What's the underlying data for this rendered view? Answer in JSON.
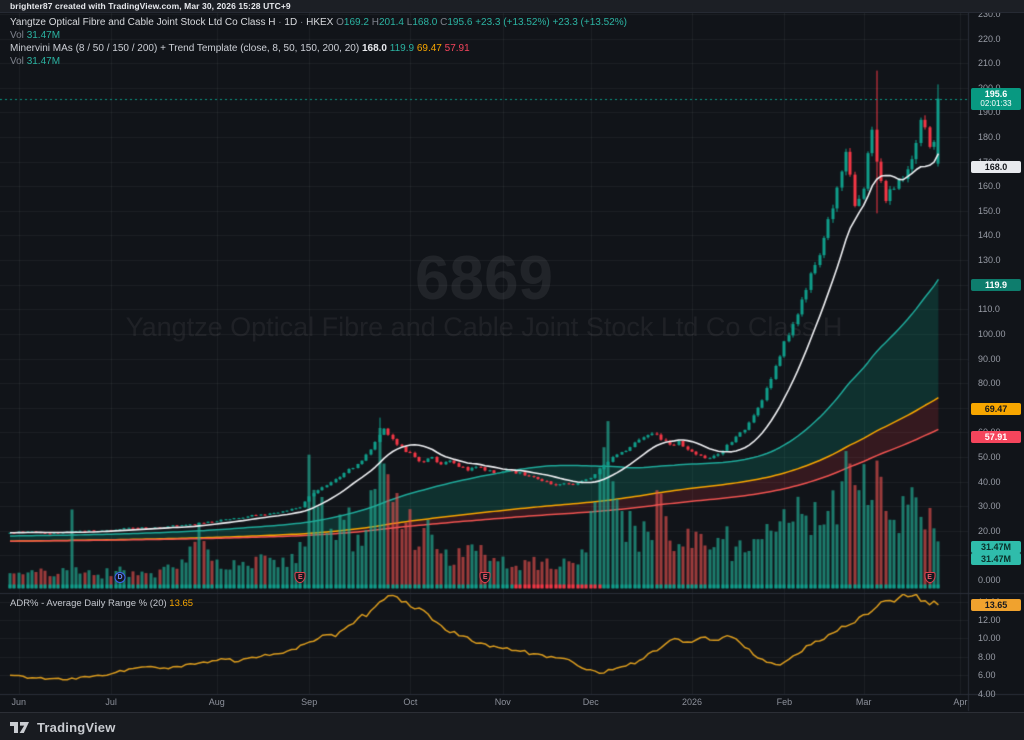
{
  "topbar": {
    "credit": "brighter87 created with TradingView.com, Mar 30, 2026 15:28 UTC+9"
  },
  "legend": {
    "symbol": "Yangtze Optical Fibre and Cable Joint Stock Ltd Co Class H",
    "dot": "·",
    "interval": "1D",
    "exchange": "HKEX",
    "o_label": "O",
    "o": "169.2",
    "h_label": "H",
    "h": "201.4",
    "l_label": "L",
    "l": "168.0",
    "c_label": "C",
    "c": "195.6",
    "change": "+23.3 (+13.52%)",
    "change2": "+23.3 (+13.52%)",
    "vol_label": "Vol",
    "vol_value": "31.47M",
    "indicator_title": "Minervini MAs (8 / 50 / 150 / 200) + Trend Template (close, 8, 50, 150, 200, 20)",
    "ma8": "168.0",
    "ma50": "119.9",
    "ma150": "69.47",
    "ma200": "57.91",
    "vol2_label": "Vol",
    "vol2_value": "31.47M"
  },
  "watermark": {
    "code": "6869",
    "name": "Yangtze Optical Fibre and Cable Joint Stock Ltd Co Class H"
  },
  "price_scale": {
    "labels": [
      {
        "text": "230.0",
        "price": 230
      },
      {
        "text": "220.0",
        "price": 220
      },
      {
        "text": "210.0",
        "price": 210
      },
      {
        "text": "200.0",
        "price": 200
      },
      {
        "text": "190.0",
        "price": 190
      },
      {
        "text": "180.0",
        "price": 180
      },
      {
        "text": "170.0",
        "price": 170
      },
      {
        "text": "160.0",
        "price": 160
      },
      {
        "text": "150.0",
        "price": 150
      },
      {
        "text": "140.0",
        "price": 140
      },
      {
        "text": "130.0",
        "price": 130
      },
      {
        "text": "120.0",
        "price": 120
      },
      {
        "text": "110.0",
        "price": 110
      },
      {
        "text": "100.00",
        "price": 100
      },
      {
        "text": "90.00",
        "price": 90
      },
      {
        "text": "80.00",
        "price": 80
      },
      {
        "text": "70.00",
        "price": 70
      },
      {
        "text": "60.00",
        "price": 60
      },
      {
        "text": "50.00",
        "price": 50
      },
      {
        "text": "40.00",
        "price": 40
      },
      {
        "text": "30.00",
        "price": 30
      },
      {
        "text": "20.00",
        "price": 20
      },
      {
        "text": "10.00",
        "price": 10
      },
      {
        "text": "0.000",
        "price": 0
      }
    ],
    "badges": [
      {
        "text": "195.6",
        "sub": "02:01:33",
        "bg": "#089981",
        "fg": "#ffffff",
        "price": 195.6
      },
      {
        "text": "168.0",
        "bg": "#e8eaee",
        "fg": "#15171c",
        "price": 168.0
      },
      {
        "text": "119.9",
        "bg": "#0e7d6d",
        "fg": "#ffffff",
        "price": 119.9
      },
      {
        "text": "69.47",
        "bg": "#f7a600",
        "fg": "#15171c",
        "price": 69.47
      },
      {
        "text": "57.91",
        "bg": "#f5455c",
        "fg": "#ffffff",
        "price": 57.91
      },
      {
        "text": "31.47M",
        "bg": "#2fbcab",
        "fg": "#0a2f2a",
        "y": 541
      },
      {
        "text": "31.47M",
        "bg": "#2fbcab",
        "fg": "#0a2f2a",
        "y": 553
      }
    ]
  },
  "adr_pane": {
    "title": "ADR% - Average Daily Range % (20)",
    "value": "13.65",
    "labels": [
      {
        "text": "14.00",
        "v": 14
      },
      {
        "text": "12.00",
        "v": 12
      },
      {
        "text": "10.00",
        "v": 10
      },
      {
        "text": "8.00",
        "v": 8
      },
      {
        "text": "6.00",
        "v": 6
      },
      {
        "text": "4.00",
        "v": 4
      }
    ],
    "badge": {
      "text": "13.65",
      "bg": "#f0a22e",
      "fg": "#17191f",
      "y": 599
    }
  },
  "time_axis": {
    "months": [
      {
        "label": "Jun",
        "bar": 2
      },
      {
        "label": "Jul",
        "bar": 23
      },
      {
        "label": "Aug",
        "bar": 47
      },
      {
        "label": "Sep",
        "bar": 68
      },
      {
        "label": "Oct",
        "bar": 91
      },
      {
        "label": "Nov",
        "bar": 112
      },
      {
        "label": "Dec",
        "bar": 132
      },
      {
        "label": "2026",
        "bar": 155
      },
      {
        "label": "Feb",
        "bar": 176
      },
      {
        "label": "Mar",
        "bar": 194
      },
      {
        "label": "Apr",
        "bar": 216
      }
    ]
  },
  "markers": [
    {
      "type": "D",
      "bar": 25
    },
    {
      "type": "E",
      "bar": 66
    },
    {
      "type": "E",
      "bar": 108
    },
    {
      "type": "E",
      "bar": 209
    }
  ],
  "bottombar": {
    "brand": "TradingView"
  },
  "colors": {
    "up": "#0f9d8a",
    "down": "#f23645",
    "ma8": "#ecedf0",
    "ma50": "#1fa99a",
    "ma150": "#f7a600",
    "ma200": "#ef5350",
    "adr_line": "#d89a1e",
    "vol_up": "rgba(34,171,148,0.68)",
    "vol_down": "rgba(239,83,80,0.62)",
    "band_up": "rgba(8,153,129,0.22)",
    "band_down": "rgba(242,54,69,0.16)",
    "current_line": "#0a9a86",
    "grid": "rgba(255,255,255,0.05)",
    "separator": "#2a2e39"
  },
  "chart_data": {
    "type": "candlestick",
    "title": "Yangtze Optical Fibre and Cable Joint Stock Ltd Co Class H, 1D, HKEX",
    "x_range": "Jun 2025 - Mar 30 2026",
    "price_axis_range": [
      0,
      230
    ],
    "bars": 212,
    "last": {
      "open": 169.2,
      "high": 201.4,
      "low": 168.0,
      "close": 195.6,
      "change_abs": 23.3,
      "change_pct": 13.52,
      "volume_m": 31.47
    },
    "ma_values": {
      "ma8": 168.0,
      "ma50": 119.9,
      "ma150": 69.47,
      "ma200": 57.91
    },
    "adr_value": 13.65,
    "current_price": 195.6,
    "volume_scale_max_m": 110,
    "seed": 9,
    "close_keyframes": [
      [
        0,
        19.2
      ],
      [
        4,
        19.7
      ],
      [
        8,
        18.9
      ],
      [
        12,
        19.3
      ],
      [
        16,
        20
      ],
      [
        20,
        19.8
      ],
      [
        24,
        20.4
      ],
      [
        28,
        21.2
      ],
      [
        32,
        21
      ],
      [
        36,
        21.8
      ],
      [
        40,
        22.4
      ],
      [
        44,
        23.2
      ],
      [
        48,
        24.5
      ],
      [
        52,
        25.2
      ],
      [
        56,
        26.3
      ],
      [
        60,
        27.2
      ],
      [
        63,
        28.2
      ],
      [
        66,
        29.5
      ],
      [
        68,
        34
      ],
      [
        70,
        36.5
      ],
      [
        72,
        38.5
      ],
      [
        74,
        41
      ],
      [
        76,
        43.5
      ],
      [
        78,
        45.5
      ],
      [
        80,
        48.5
      ],
      [
        82,
        53
      ],
      [
        84,
        59
      ],
      [
        85,
        61.5
      ],
      [
        86,
        59
      ],
      [
        88,
        55
      ],
      [
        90,
        52
      ],
      [
        92,
        50
      ],
      [
        94,
        48
      ],
      [
        96,
        50
      ],
      [
        98,
        47
      ],
      [
        100,
        48.5
      ],
      [
        102,
        46
      ],
      [
        104,
        44.5
      ],
      [
        106,
        46
      ],
      [
        108,
        44.5
      ],
      [
        111,
        43.5
      ],
      [
        114,
        44.5
      ],
      [
        117,
        42.5
      ],
      [
        120,
        41
      ],
      [
        124,
        38.5
      ],
      [
        127,
        39
      ],
      [
        129,
        39.5
      ],
      [
        132,
        41.5
      ],
      [
        134,
        45
      ],
      [
        137,
        50
      ],
      [
        139,
        52
      ],
      [
        141,
        54
      ],
      [
        144,
        58
      ],
      [
        146,
        59.5
      ],
      [
        148,
        57
      ],
      [
        150,
        55
      ],
      [
        152,
        56.5
      ],
      [
        154,
        53
      ],
      [
        156,
        51
      ],
      [
        158,
        49.5
      ],
      [
        160,
        50.5
      ],
      [
        162,
        52.5
      ],
      [
        164,
        56
      ],
      [
        166,
        60
      ],
      [
        168,
        64
      ],
      [
        170,
        70
      ],
      [
        172,
        78
      ],
      [
        174,
        87
      ],
      [
        176,
        97
      ],
      [
        178,
        104
      ],
      [
        180,
        114
      ],
      [
        183,
        128
      ],
      [
        185,
        139
      ],
      [
        187,
        151
      ],
      [
        189,
        166
      ],
      [
        190,
        174
      ],
      [
        192,
        152
      ],
      [
        194,
        159
      ],
      [
        196,
        183
      ],
      [
        197,
        170
      ],
      [
        199,
        154
      ],
      [
        201,
        159
      ],
      [
        203,
        163
      ],
      [
        205,
        171
      ],
      [
        207,
        187
      ],
      [
        209,
        176
      ],
      [
        210,
        178
      ],
      [
        211,
        195.6
      ]
    ],
    "overrides": {
      "84": [
        null,
        66,
        null,
        null
      ],
      "197": [
        183,
        207,
        149,
        170
      ],
      "211": [
        169.2,
        201.4,
        168.0,
        195.6
      ]
    },
    "volume_keyframes_m": [
      [
        0,
        10
      ],
      [
        5,
        12
      ],
      [
        9,
        8
      ],
      [
        13,
        12
      ],
      [
        14,
        53
      ],
      [
        15,
        14
      ],
      [
        20,
        9
      ],
      [
        26,
        12
      ],
      [
        32,
        10
      ],
      [
        38,
        13
      ],
      [
        41,
        28
      ],
      [
        43,
        44
      ],
      [
        45,
        26
      ],
      [
        48,
        13
      ],
      [
        54,
        15
      ],
      [
        60,
        19
      ],
      [
        64,
        23
      ],
      [
        67,
        28
      ],
      [
        68,
        90
      ],
      [
        70,
        55
      ],
      [
        73,
        40
      ],
      [
        76,
        46
      ],
      [
        79,
        36
      ],
      [
        82,
        66
      ],
      [
        84,
        108
      ],
      [
        85,
        84
      ],
      [
        87,
        58
      ],
      [
        90,
        44
      ],
      [
        93,
        28
      ],
      [
        96,
        36
      ],
      [
        99,
        26
      ],
      [
        103,
        21
      ],
      [
        107,
        29
      ],
      [
        111,
        18
      ],
      [
        115,
        15
      ],
      [
        119,
        21
      ],
      [
        123,
        13
      ],
      [
        127,
        18
      ],
      [
        131,
        24
      ],
      [
        133,
        58
      ],
      [
        135,
        95
      ],
      [
        137,
        72
      ],
      [
        139,
        52
      ],
      [
        142,
        42
      ],
      [
        145,
        38
      ],
      [
        147,
        66
      ],
      [
        150,
        32
      ],
      [
        153,
        28
      ],
      [
        156,
        38
      ],
      [
        159,
        26
      ],
      [
        162,
        33
      ],
      [
        165,
        28
      ],
      [
        168,
        25
      ],
      [
        171,
        33
      ],
      [
        174,
        38
      ],
      [
        177,
        44
      ],
      [
        180,
        50
      ],
      [
        183,
        58
      ],
      [
        186,
        52
      ],
      [
        189,
        72
      ],
      [
        191,
        84
      ],
      [
        193,
        66
      ],
      [
        195,
        56
      ],
      [
        197,
        86
      ],
      [
        199,
        52
      ],
      [
        201,
        46
      ],
      [
        203,
        62
      ],
      [
        205,
        68
      ],
      [
        207,
        48
      ],
      [
        209,
        54
      ],
      [
        211,
        31.47
      ]
    ],
    "adr_keyframes": [
      [
        0,
        6
      ],
      [
        6,
        5.7
      ],
      [
        12,
        5.5
      ],
      [
        18,
        5.8
      ],
      [
        24,
        6.3
      ],
      [
        30,
        6.9
      ],
      [
        36,
        6.7
      ],
      [
        42,
        7.2
      ],
      [
        48,
        7.8
      ],
      [
        52,
        7.5
      ],
      [
        56,
        7.9
      ],
      [
        60,
        8.3
      ],
      [
        64,
        8.8
      ],
      [
        68,
        9.6
      ],
      [
        72,
        10.4
      ],
      [
        74,
        10.2
      ],
      [
        78,
        11.6
      ],
      [
        82,
        13
      ],
      [
        85,
        14.2
      ],
      [
        88,
        14.5
      ],
      [
        90,
        14
      ],
      [
        93,
        13.3
      ],
      [
        96,
        12
      ],
      [
        99,
        10.9
      ],
      [
        102,
        10.3
      ],
      [
        105,
        9.7
      ],
      [
        108,
        9.4
      ],
      [
        112,
        8.9
      ],
      [
        116,
        8.6
      ],
      [
        120,
        8.3
      ],
      [
        124,
        7.9
      ],
      [
        128,
        7.4
      ],
      [
        131,
        6.6
      ],
      [
        134,
        6.2
      ],
      [
        137,
        6.6
      ],
      [
        140,
        7
      ],
      [
        143,
        7.6
      ],
      [
        146,
        8.6
      ],
      [
        149,
        9.4
      ],
      [
        152,
        9.9
      ],
      [
        154,
        9.6
      ],
      [
        157,
        10.1
      ],
      [
        160,
        9.8
      ],
      [
        163,
        10.3
      ],
      [
        166,
        9.5
      ],
      [
        169,
        8.2
      ],
      [
        172,
        7.4
      ],
      [
        175,
        7.1
      ],
      [
        178,
        8.1
      ],
      [
        182,
        9.3
      ],
      [
        186,
        10.4
      ],
      [
        190,
        11.3
      ],
      [
        193,
        12.3
      ],
      [
        196,
        13
      ],
      [
        199,
        14.1
      ],
      [
        202,
        14.4
      ],
      [
        205,
        14.6
      ],
      [
        208,
        14.1
      ],
      [
        211,
        13.65
      ]
    ]
  }
}
